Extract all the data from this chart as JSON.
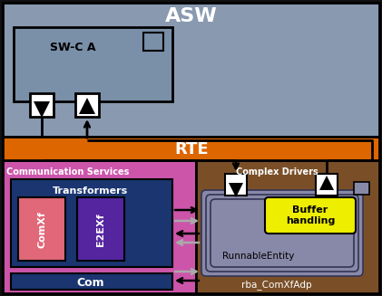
{
  "bg_color": "#111111",
  "asw_bg": "#8899b0",
  "asw_label": "ASW",
  "swc_bg": "#7a8fa8",
  "swc_label": "SW-C A",
  "rte_bg": "#dd6600",
  "rte_label": "RTE",
  "comm_bg": "#cc55aa",
  "comm_label": "Communication Services",
  "transformers_bg": "#1a3570",
  "transformers_label": "Transformers",
  "comxf_bg": "#e06878",
  "comxf_label": "ComXf",
  "e2exf_bg": "#5525a0",
  "e2exf_label": "E2EXf",
  "com_bg": "#1a3570",
  "com_label": "Com",
  "complex_bg": "#7a4f28",
  "complex_label": "Complex Drivers",
  "runnable_bg": "#8888a8",
  "runnable_border": "#333355",
  "runnable_label": "RunnableEntity",
  "buffer_bg": "#eeee00",
  "buffer_label": "Buffer\nhandling",
  "rba_label": "rba_ComXfAdp",
  "arrow_color": "#111111",
  "gray_arrow_color": "#aaaaaa",
  "white": "#ffffff",
  "black": "#000000"
}
